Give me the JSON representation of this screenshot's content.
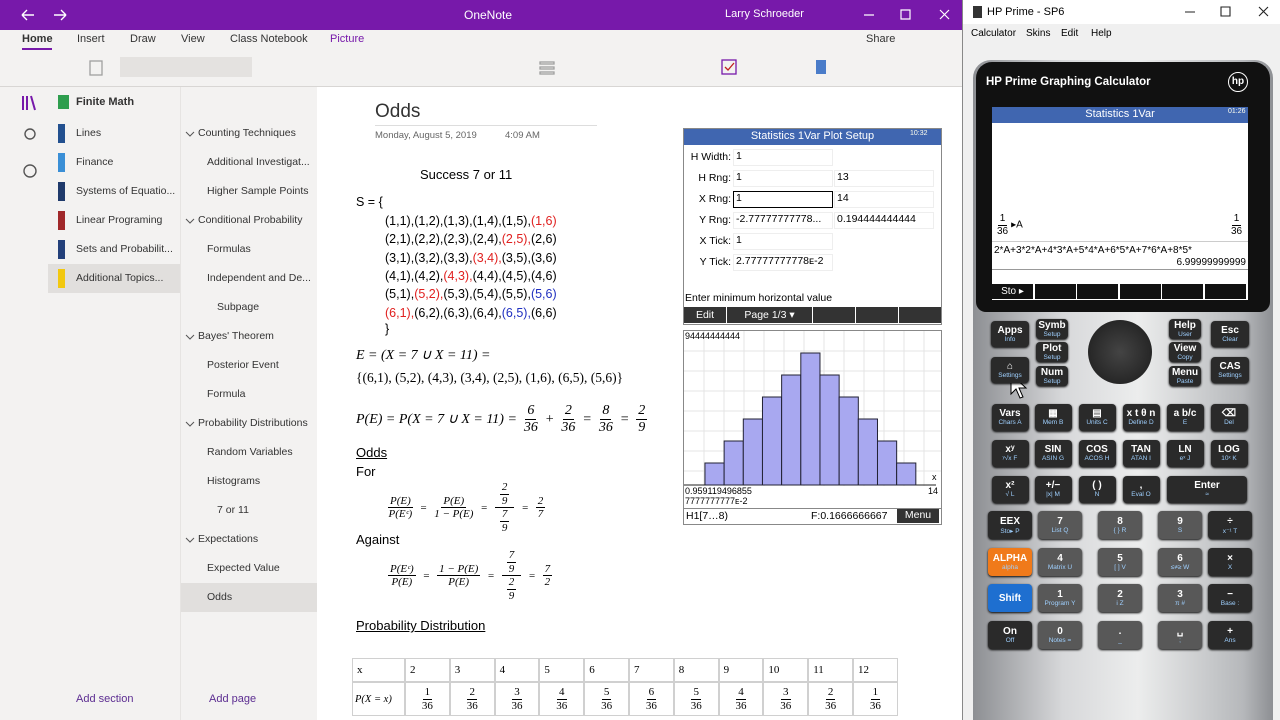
{
  "onenote": {
    "window_title": "OneNote",
    "user": "Larry Schroeder",
    "tabs": [
      "Home",
      "Insert",
      "Draw",
      "View",
      "Class Notebook",
      "Picture"
    ],
    "share": "Share",
    "notebook": "Finite Math",
    "sections": [
      {
        "name": "Lines",
        "color": "#22508f"
      },
      {
        "name": "Finance",
        "color": "#3a8fd6"
      },
      {
        "name": "Systems of Equatio...",
        "color": "#1f3a6b"
      },
      {
        "name": "Linear Programing",
        "color": "#a0282a"
      },
      {
        "name": "Sets and Probabilit...",
        "color": "#23407a"
      },
      {
        "name": "Additional Topics...",
        "color": "#f2c80f",
        "selected": true
      }
    ],
    "page_groups": [
      {
        "title": "Counting Techniques",
        "pages": [
          {
            "title": "Additional Investigat..."
          },
          {
            "title": "Higher Sample Points"
          }
        ]
      },
      {
        "title": "Conditional Probability",
        "pages": [
          {
            "title": "Formulas"
          },
          {
            "title": "Independent and De...",
            "subpages": [
              "Subpage"
            ]
          }
        ]
      },
      {
        "title": "Bayes' Theorem",
        "pages": [
          {
            "title": "Posterior Event"
          },
          {
            "title": "Formula"
          }
        ]
      },
      {
        "title": "Probability Distributions",
        "pages": [
          {
            "title": "Random Variables"
          },
          {
            "title": "Histograms",
            "subpages": [
              "7 or 11"
            ]
          }
        ]
      },
      {
        "title": "Expectations",
        "pages": [
          {
            "title": "Expected Value"
          },
          {
            "title": "Odds",
            "selected": true
          }
        ]
      }
    ],
    "add_section": "Add section",
    "add_page": "Add page",
    "page": {
      "title": "Odds",
      "date": "Monday, August 5, 2019",
      "time": "4:09 AM",
      "heading": "Success 7 or 11",
      "set_open": "S = {",
      "sample_space": [
        [
          "(1,1),",
          "(1,2),",
          "(1,3),",
          "(1,4),",
          "(1,5),",
          {
            "text": "(1,6)",
            "color": "#e0201f"
          }
        ],
        [
          "(2,1),",
          "(2,2),",
          "(2,3),",
          "(2,4),",
          {
            "text": "(2,5),",
            "color": "#e0201f"
          },
          "(2,6)"
        ],
        [
          "(3,1),",
          "(3,2),",
          "(3,3),",
          {
            "text": "(3,4),",
            "color": "#e0201f"
          },
          "(3,5),",
          "(3,6)"
        ],
        [
          "(4,1),",
          "(4,2),",
          {
            "text": "(4,3),",
            "color": "#e0201f"
          },
          "(4,4),",
          "(4,5),",
          "(4,6)"
        ],
        [
          "(5,1),",
          {
            "text": "(5,2),",
            "color": "#e0201f"
          },
          "(5,3),",
          "(5,4),",
          "(5,5),",
          {
            "text": "(5,6)",
            "color": "#2030c0"
          }
        ],
        [
          {
            "text": "(6,1),",
            "color": "#e0201f"
          },
          "(6,2),",
          "(6,3),",
          "(6,4),",
          {
            "text": "(6,5),",
            "color": "#2030c0"
          },
          "(6,6)"
        ]
      ],
      "set_close": "}",
      "event_def": "E = (X = 7 ∪ X = 11) =",
      "event_set": "{(6,1), (5,2), (4,3), (3,4), (2,5), (1,6), (6,5), (5,6)}",
      "prob_formula": [
        "P(E) = P(X = 7 ∪ X = 11) =",
        {
          "num": "6",
          "den": "36"
        },
        "+",
        {
          "num": "2",
          "den": "36"
        },
        "=",
        {
          "num": "8",
          "den": "36"
        },
        "=",
        {
          "num": "2",
          "den": "9"
        }
      ],
      "odds_heading": "Odds",
      "for_label": "For",
      "for_formula": [
        {
          "num": "P(E)",
          "den": "P(Eᶜ)"
        },
        "=",
        {
          "num": "P(E)",
          "den": "1 − P(E)"
        },
        "=",
        {
          "num": {
            "num": "2",
            "den": "9"
          },
          "den": {
            "num": "7",
            "den": "9"
          }
        },
        "=",
        {
          "num": "2",
          "den": "7"
        }
      ],
      "against_label": "Against",
      "against_formula": [
        {
          "num": "P(Eᶜ)",
          "den": "P(E)"
        },
        "=",
        {
          "num": "1 − P(E)",
          "den": "P(E)"
        },
        "=",
        {
          "num": {
            "num": "7",
            "den": "9"
          },
          "den": {
            "num": "2",
            "den": "9"
          }
        },
        "=",
        {
          "num": "7",
          "den": "2"
        }
      ],
      "dist_heading": "Probability Distribution",
      "table": {
        "x_label": "x",
        "p_label": "P(X = x)",
        "x": [
          "2",
          "3",
          "4",
          "5",
          "6",
          "7",
          "8",
          "9",
          "10",
          "11",
          "12"
        ],
        "p": [
          {
            "num": "1",
            "den": "36"
          },
          {
            "num": "2",
            "den": "36"
          },
          {
            "num": "3",
            "den": "36"
          },
          {
            "num": "4",
            "den": "36"
          },
          {
            "num": "5",
            "den": "36"
          },
          {
            "num": "6",
            "den": "36"
          },
          {
            "num": "5",
            "den": "36"
          },
          {
            "num": "4",
            "den": "36"
          },
          {
            "num": "3",
            "den": "36"
          },
          {
            "num": "2",
            "den": "36"
          },
          {
            "num": "1",
            "den": "36"
          }
        ]
      },
      "plot_setup": {
        "title": "Statistics 1Var Plot Setup",
        "clock": "10:32",
        "fields": [
          {
            "label": "H Width:",
            "values": [
              "1"
            ]
          },
          {
            "label": "H Rng:",
            "values": [
              "1",
              "13"
            ]
          },
          {
            "label": "X Rng:",
            "values": [
              "1",
              "14"
            ],
            "focused": true
          },
          {
            "label": "Y Rng:",
            "values": [
              "-2.77777777778...",
              "0.194444444444"
            ]
          },
          {
            "label": "X Tick:",
            "values": [
              "1"
            ]
          },
          {
            "label": "Y Tick:",
            "values": [
              "2.77777777778ᴇ-2"
            ]
          }
        ],
        "hint": "Enter minimum horizontal value",
        "softkeys": [
          "Edit",
          "Page 1/3 ▾"
        ]
      },
      "plot": {
        "y_max_label": "94444444444",
        "x_min_label": "0.959119496855",
        "x_max_label": "14",
        "y_min_label": "7777777777ᴇ-2",
        "x_axis_label": "x",
        "cursor": "H1[7…8)",
        "frequency": "F:0.1666666667",
        "menu": "Menu"
      }
    }
  },
  "hp_prime": {
    "window_title": "HP Prime - SP6",
    "menu": [
      "Calculator",
      "Skins",
      "Edit",
      "Help"
    ],
    "brand": "HP Prime Graphing Calculator",
    "logo": "hp",
    "screen": {
      "title": "Statistics 1Var",
      "clock": "01:26",
      "entry": [
        {
          "num": "1",
          "den": "36"
        },
        "▸A"
      ],
      "entry_result": {
        "num": "1",
        "den": "36"
      },
      "expression": "2*A+3*2*A+4*3*A+5*4*A+6*5*A+7*6*A+8*5*",
      "result": "6.99999999999",
      "softkey": "Sto ▸"
    },
    "top_keys": [
      {
        "label": "Apps",
        "sub": "Info"
      },
      {
        "label": "Symb",
        "sub": "Setup"
      },
      {
        "label": "Plot",
        "sub": "Setup"
      },
      {
        "label": "Num",
        "sub": "Setup"
      },
      {
        "label": "Help",
        "sub": "User"
      },
      {
        "label": "View",
        "sub": "Copy"
      },
      {
        "label": "Menu",
        "sub": "Paste"
      },
      {
        "label": "Esc",
        "sub": "Clear"
      },
      {
        "label": "CAS",
        "sub": "Settings"
      },
      {
        "label": "⌂",
        "sub": "Settings"
      }
    ],
    "key_rows": [
      [
        {
          "label": "Vars",
          "sub": "Chars A"
        },
        {
          "label": "▦",
          "sub": "Mem B"
        },
        {
          "label": "▤",
          "sub": "Units C"
        },
        {
          "label": "x t θ n",
          "sub": "Define D"
        },
        {
          "label": "a b/c",
          "sub": "E"
        },
        {
          "label": "⌫",
          "sub": "Del"
        }
      ],
      [
        {
          "label": "xʸ",
          "sub": "ʸ√x F"
        },
        {
          "label": "SIN",
          "sub": "ASIN G"
        },
        {
          "label": "COS",
          "sub": "ACOS H"
        },
        {
          "label": "TAN",
          "sub": "ATAN I"
        },
        {
          "label": "LN",
          "sub": "eˣ J"
        },
        {
          "label": "LOG",
          "sub": "10ˣ K"
        }
      ],
      [
        {
          "label": "x²",
          "sub": "√ L"
        },
        {
          "label": "+/−",
          "sub": "|x| M"
        },
        {
          "label": "( )",
          "sub": "N"
        },
        {
          "label": ",",
          "sub": "Eval O"
        },
        {
          "label": "Enter",
          "sub": "≈"
        }
      ],
      [
        {
          "label": "EEX",
          "sub": "Sto▸ P"
        },
        {
          "label": "7",
          "sub": "List Q"
        },
        {
          "label": "8",
          "sub": "{ } R"
        },
        {
          "label": "9",
          "sub": "S"
        },
        {
          "label": "÷",
          "sub": "x⁻¹ T"
        }
      ],
      [
        {
          "label": "ALPHA",
          "sub": "alpha",
          "color": "#f07a1a"
        },
        {
          "label": "4",
          "sub": "Matrix U"
        },
        {
          "label": "5",
          "sub": "[ ] V"
        },
        {
          "label": "6",
          "sub": "≤≠≥ W"
        },
        {
          "label": "×",
          "sub": "X"
        }
      ],
      [
        {
          "label": "Shift",
          "color": "#1e6fd0"
        },
        {
          "label": "1",
          "sub": "Program Y"
        },
        {
          "label": "2",
          "sub": "i Z"
        },
        {
          "label": "3",
          "sub": "π #"
        },
        {
          "label": "−",
          "sub": "Base :"
        }
      ],
      [
        {
          "label": "On",
          "sub": "Off"
        },
        {
          "label": "0",
          "sub": "Notes ="
        },
        {
          "label": ".",
          "sub": "_"
        },
        {
          "label": "␣",
          "sub": ";"
        },
        {
          "label": "+",
          "sub": "Ans"
        }
      ]
    ]
  }
}
